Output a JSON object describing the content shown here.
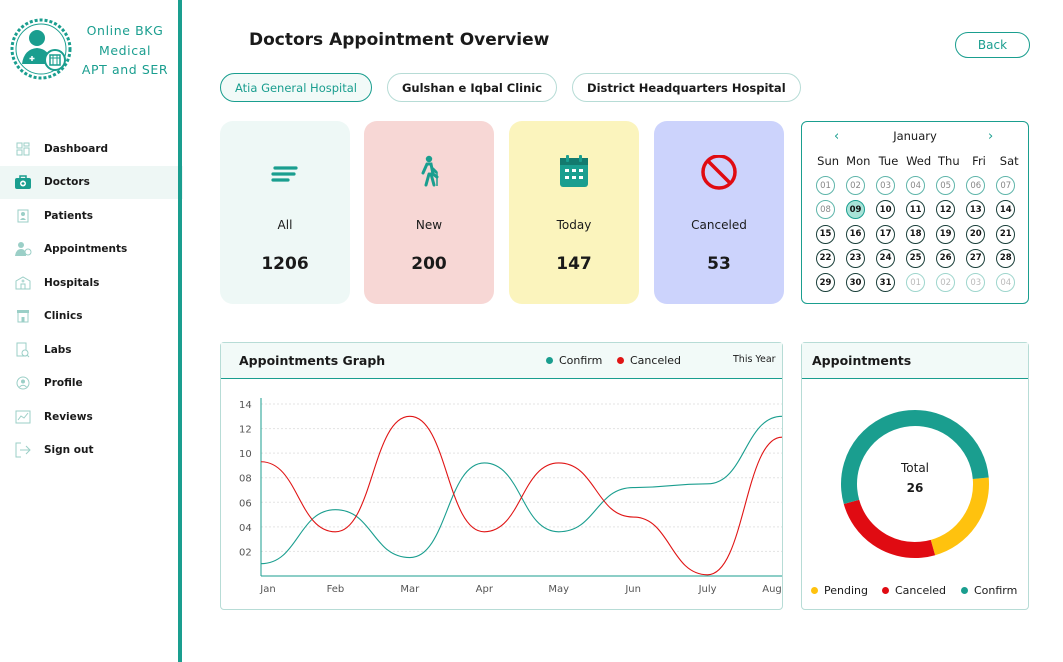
{
  "brand": {
    "line1": "Online BKG",
    "line2": "Medical",
    "line3": "APT and SER"
  },
  "nav": [
    {
      "label": "Dashboard",
      "icon": "dashboard-icon"
    },
    {
      "label": "Doctors",
      "icon": "doctor-bag-icon"
    },
    {
      "label": "Patients",
      "icon": "patient-icon"
    },
    {
      "label": "Appointments",
      "icon": "appointment-icon"
    },
    {
      "label": "Hospitals",
      "icon": "hospital-icon"
    },
    {
      "label": "Clinics",
      "icon": "clinic-icon"
    },
    {
      "label": "Labs",
      "icon": "lab-icon"
    },
    {
      "label": "Profile",
      "icon": "profile-icon"
    },
    {
      "label": "Reviews",
      "icon": "reviews-icon"
    },
    {
      "label": "Sign out",
      "icon": "sign-out-icon"
    }
  ],
  "header": {
    "title": "Doctors Appointment Overview",
    "back_label": "Back"
  },
  "tabs": [
    "Atia General Hospital",
    "Gulshan e Iqbal Clinic",
    "District Headquarters Hospital"
  ],
  "cards": [
    {
      "label": "All",
      "value": "1206",
      "bg": "#eef8f6",
      "icon": "list-lines-icon"
    },
    {
      "label": "New",
      "value": "200",
      "bg": "#f7d7d5",
      "icon": "walking-person-icon"
    },
    {
      "label": "Today",
      "value": "147",
      "bg": "#fbf4bd",
      "icon": "calendar-icon"
    },
    {
      "label": "Canceled",
      "value": "53",
      "bg": "#ccd3fc",
      "icon": "cancel-icon"
    }
  ],
  "calendar": {
    "month": "January",
    "weekdays": [
      "Sun",
      "Mon",
      "Tue",
      "Wed",
      "Thu",
      "Fri",
      "Sat"
    ],
    "days": [
      "01",
      "02",
      "03",
      "04",
      "05",
      "06",
      "07",
      "08",
      "09",
      "10",
      "11",
      "12",
      "13",
      "14",
      "15",
      "16",
      "17",
      "18",
      "19",
      "20",
      "21",
      "22",
      "23",
      "24",
      "25",
      "26",
      "27",
      "28",
      "29",
      "30",
      "31",
      "01",
      "02",
      "03",
      "04"
    ],
    "selected": "09"
  },
  "graph": {
    "title": "Appointments Graph",
    "legend_confirm": "Confirm",
    "legend_canceled": "Canceled",
    "range_label": "This Year"
  },
  "chart_data": {
    "type": "line",
    "categories": [
      "Jan",
      "Feb",
      "Mar",
      "Apr",
      "May",
      "Jun",
      "July",
      "Aug"
    ],
    "series": [
      {
        "name": "Confirm",
        "color": "#1a9e8f",
        "values": [
          1,
          5.4,
          1.5,
          9.2,
          3.6,
          7.2,
          7.5,
          13
        ]
      },
      {
        "name": "Canceled",
        "color": "#e01515",
        "values": [
          9.3,
          3.6,
          13,
          3.6,
          9.2,
          4.8,
          0.1,
          11.3
        ]
      }
    ],
    "y_ticks": [
      "02",
      "04",
      "06",
      "08",
      "10",
      "12",
      "14"
    ],
    "ylim": [
      0,
      14
    ]
  },
  "donut": {
    "title": "Appointments",
    "center_label": "Total",
    "center_value": "26",
    "segments": [
      {
        "name": "Pending",
        "color": "#ffc20e",
        "fraction": 0.22
      },
      {
        "name": "Canceled",
        "color": "#e00b12",
        "fraction": 0.25
      },
      {
        "name": "Confirm",
        "color": "#1a9e8f",
        "fraction": 0.53
      }
    ]
  },
  "colors": {
    "accent": "#1a9e8f",
    "cancel": "#e00b12",
    "pending": "#ffc20e"
  }
}
